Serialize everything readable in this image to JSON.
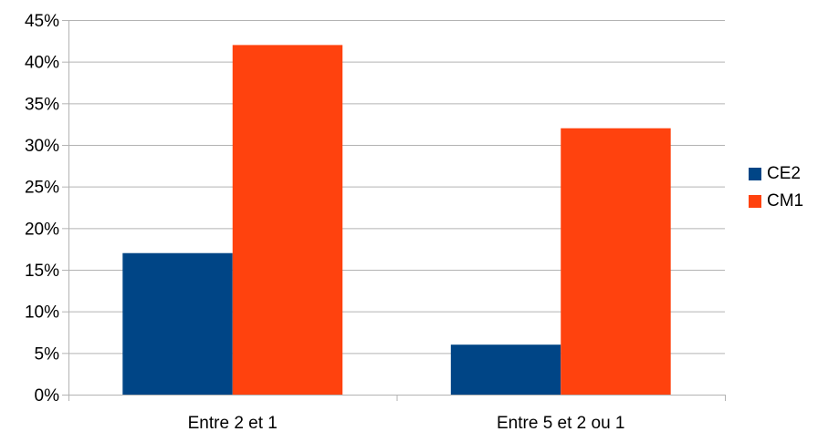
{
  "chart_data": {
    "type": "bar",
    "title": "",
    "xlabel": "",
    "ylabel": "",
    "categories": [
      "Entre 2 et 1",
      "Entre 5 et 2 ou 1"
    ],
    "series": [
      {
        "name": "CE2",
        "values": [
          17,
          6
        ],
        "color": "#004586"
      },
      {
        "name": "CM1",
        "values": [
          42,
          32
        ],
        "color": "#ff420e"
      }
    ],
    "ylim": [
      0,
      45
    ],
    "yticks": [
      0,
      5,
      10,
      15,
      20,
      25,
      30,
      35,
      40,
      45
    ],
    "ytick_labels": [
      "0%",
      "5%",
      "10%",
      "15%",
      "20%",
      "25%",
      "30%",
      "35%",
      "40%",
      "45%"
    ],
    "grid": true,
    "legend_position": "right"
  }
}
